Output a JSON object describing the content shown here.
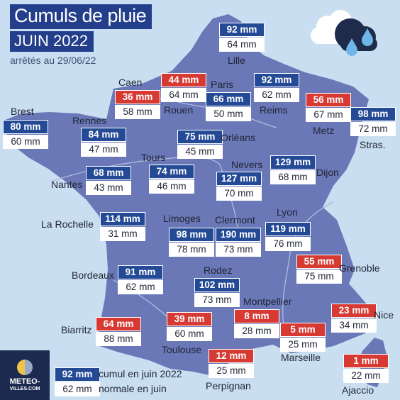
{
  "header": {
    "title": "Cumuls de pluie",
    "subtitle": "JUIN 2022",
    "date_note": "arrêtés au 29/06/22"
  },
  "weather_icon": "cloud-rain-icon",
  "colors": {
    "background": "#c9dff1",
    "land": "#6b78b8",
    "above_normal": "#244a96",
    "below_normal": "#d63a33",
    "title_bg": "#233e8b"
  },
  "cities": [
    {
      "key": "lille",
      "name": "Lille",
      "rain": "92 mm",
      "normal": "64 mm",
      "status": "above"
    },
    {
      "key": "caen",
      "name": "Caen",
      "rain": "36 mm",
      "normal": "58 mm",
      "status": "below"
    },
    {
      "key": "rouen",
      "name": "Rouen",
      "rain": "44 mm",
      "normal": "64 mm",
      "status": "below"
    },
    {
      "key": "paris",
      "name": "Paris",
      "rain": "66 mm",
      "normal": "50 mm",
      "status": "above"
    },
    {
      "key": "reims",
      "name": "Reims",
      "rain": "92 mm",
      "normal": "62 mm",
      "status": "above"
    },
    {
      "key": "metz",
      "name": "Metz",
      "rain": "56 mm",
      "normal": "67 mm",
      "status": "below"
    },
    {
      "key": "strasbourg",
      "name": "Stras.",
      "rain": "98 mm",
      "normal": "72 mm",
      "status": "above"
    },
    {
      "key": "brest",
      "name": "Brest",
      "rain": "80 mm",
      "normal": "60 mm",
      "status": "above"
    },
    {
      "key": "rennes",
      "name": "Rennes",
      "rain": "84 mm",
      "normal": "47 mm",
      "status": "above"
    },
    {
      "key": "orleans",
      "name": "Orléans",
      "rain": "75 mm",
      "normal": "45 mm",
      "status": "above"
    },
    {
      "key": "tours",
      "name": "Tours",
      "rain": "74 mm",
      "normal": "46 mm",
      "status": "above"
    },
    {
      "key": "nantes",
      "name": "Nantes",
      "rain": "68 mm",
      "normal": "43 mm",
      "status": "above"
    },
    {
      "key": "nevers",
      "name": "Nevers",
      "rain": "127 mm",
      "normal": "70 mm",
      "status": "above"
    },
    {
      "key": "dijon",
      "name": "Dijon",
      "rain": "129 mm",
      "normal": "68 mm",
      "status": "above"
    },
    {
      "key": "larochelle",
      "name": "La Rochelle",
      "rain": "114 mm",
      "normal": "31 mm",
      "status": "above"
    },
    {
      "key": "limoges",
      "name": "Limoges",
      "rain": "98 mm",
      "normal": "78 mm",
      "status": "above"
    },
    {
      "key": "clermont",
      "name": "Clermont",
      "rain": "190 mm",
      "normal": "73 mm",
      "status": "above"
    },
    {
      "key": "lyon",
      "name": "Lyon",
      "rain": "119 mm",
      "normal": "76 mm",
      "status": "above"
    },
    {
      "key": "grenoble",
      "name": "Grenoble",
      "rain": "55 mm",
      "normal": "75 mm",
      "status": "below"
    },
    {
      "key": "bordeaux",
      "name": "Bordeaux",
      "rain": "91 mm",
      "normal": "62 mm",
      "status": "above"
    },
    {
      "key": "rodez",
      "name": "Rodez",
      "rain": "102 mm",
      "normal": "73 mm",
      "status": "above"
    },
    {
      "key": "montpellier",
      "name": "Montpellier",
      "rain": "8 mm",
      "normal": "28 mm",
      "status": "below"
    },
    {
      "key": "nice",
      "name": "Nice",
      "rain": "23 mm",
      "normal": "34 mm",
      "status": "below"
    },
    {
      "key": "biarritz",
      "name": "Biarritz",
      "rain": "64 mm",
      "normal": "88 mm",
      "status": "below"
    },
    {
      "key": "toulouse",
      "name": "Toulouse",
      "rain": "39 mm",
      "normal": "60 mm",
      "status": "below"
    },
    {
      "key": "marseille",
      "name": "Marseille",
      "rain": "5 mm",
      "normal": "25 mm",
      "status": "below"
    },
    {
      "key": "perpignan",
      "name": "Perpignan",
      "rain": "12 mm",
      "normal": "25 mm",
      "status": "below"
    },
    {
      "key": "ajaccio",
      "name": "Ajaccio",
      "rain": "1 mm",
      "normal": "22 mm",
      "status": "below"
    }
  ],
  "legend": {
    "rain_sample": "92 mm",
    "normal_sample": "62 mm",
    "rain_label": "cumul en juin 2022",
    "normal_label": "normale en juin"
  },
  "logo": {
    "line1": "METEO-",
    "line2": "VILLES.COM"
  }
}
